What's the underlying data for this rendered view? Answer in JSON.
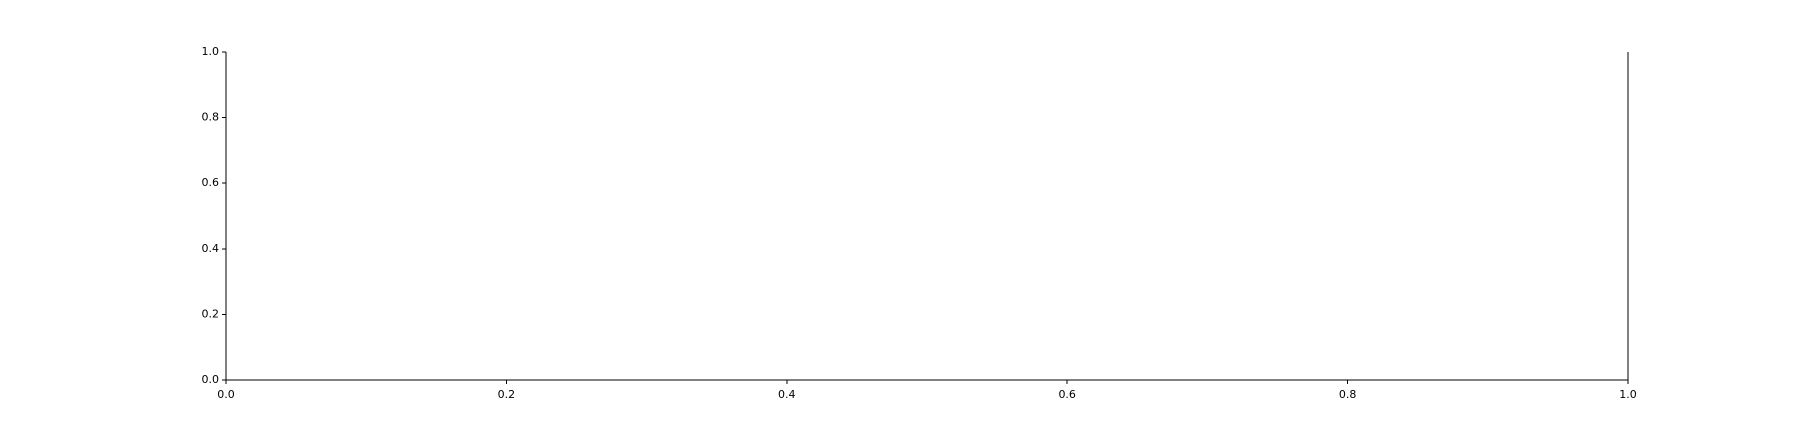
{
  "chart_data": {
    "type": "line",
    "title": "",
    "xlabel": "",
    "ylabel": "",
    "xlim": [
      0.0,
      1.0
    ],
    "ylim": [
      0.0,
      1.0
    ],
    "xticks": [
      "0.0",
      "0.2",
      "0.4",
      "0.6",
      "0.8",
      "1.0"
    ],
    "yticks": [
      "0.0",
      "0.2",
      "0.4",
      "0.6",
      "0.8",
      "1.0"
    ],
    "series": [],
    "grid": false,
    "spines": [
      "left",
      "bottom",
      "right"
    ],
    "colors": {
      "axis": "#000000",
      "background": "#ffffff"
    }
  }
}
